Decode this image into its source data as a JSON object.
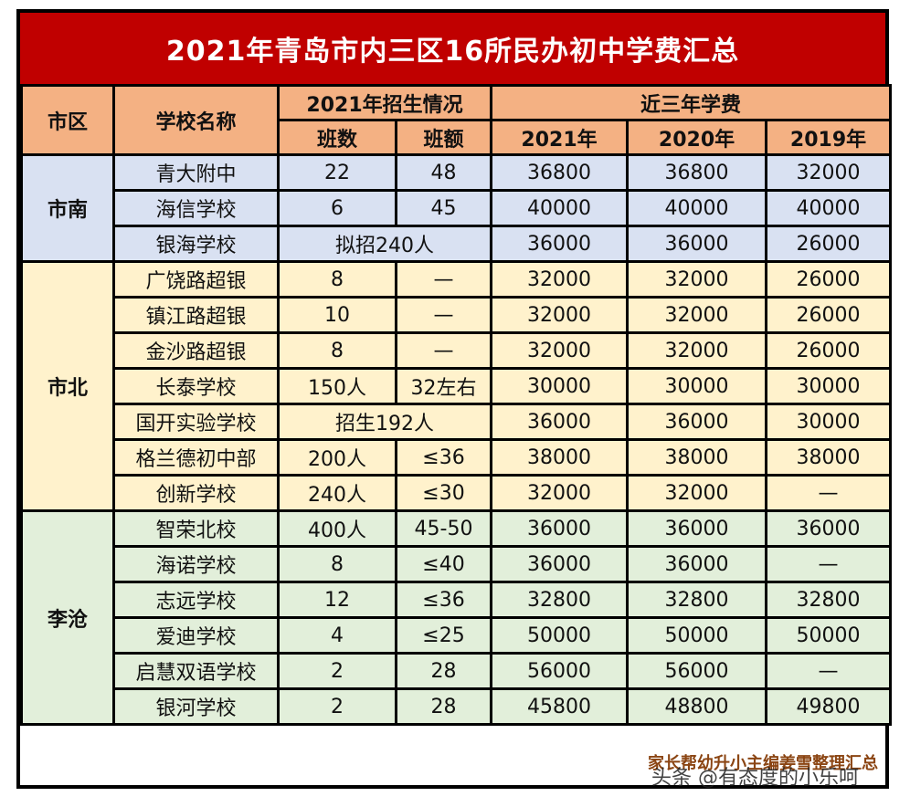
{
  "title": "2021年青岛市内三区16所民办初中学费汇总",
  "headers": {
    "district": "市区",
    "school": "学校名称",
    "enroll_group": "2021年招生情况",
    "fee_group": "近三年学费",
    "classes": "班数",
    "class_size": "班额",
    "y2021": "2021年",
    "y2020": "2020年",
    "y2019": "2019年"
  },
  "regions": [
    {
      "name": "市南",
      "rows": [
        {
          "school": "青大附中",
          "classes": "22",
          "size": "48",
          "f2021": "36800",
          "f2020": "36800",
          "f2019": "32000"
        },
        {
          "school": "海信学校",
          "classes": "6",
          "size": "45",
          "f2021": "40000",
          "f2020": "40000",
          "f2019": "40000"
        },
        {
          "school": "银海学校",
          "merged": "拟招240人",
          "f2021": "36000",
          "f2020": "36000",
          "f2019": "26000"
        }
      ]
    },
    {
      "name": "市北",
      "rows": [
        {
          "school": "广饶路超银",
          "classes": "8",
          "size": "—",
          "f2021": "32000",
          "f2020": "32000",
          "f2019": "26000"
        },
        {
          "school": "镇江路超银",
          "classes": "10",
          "size": "—",
          "f2021": "32000",
          "f2020": "32000",
          "f2019": "26000"
        },
        {
          "school": "金沙路超银",
          "classes": "8",
          "size": "—",
          "f2021": "32000",
          "f2020": "32000",
          "f2019": "26000"
        },
        {
          "school": "长泰学校",
          "classes": "150人",
          "size": "32左右",
          "f2021": "30000",
          "f2020": "30000",
          "f2019": "30000"
        },
        {
          "school": "国开实验学校",
          "merged": "招生192人",
          "f2021": "36000",
          "f2020": "36000",
          "f2019": "30000"
        },
        {
          "school": "格兰德初中部",
          "classes": "200人",
          "size": "≤36",
          "f2021": "38000",
          "f2020": "38000",
          "f2019": "38000"
        },
        {
          "school": "创新学校",
          "classes": "240人",
          "size": "≤30",
          "f2021": "32000",
          "f2020": "32000",
          "f2019": "—"
        }
      ]
    },
    {
      "name": "李沧",
      "rows": [
        {
          "school": "智荣北校",
          "classes": "400人",
          "size": "45-50",
          "f2021": "36000",
          "f2020": "36000",
          "f2019": "36000"
        },
        {
          "school": "海诺学校",
          "classes": "8",
          "size": "≤40",
          "f2021": "36000",
          "f2020": "36000",
          "f2019": "—"
        },
        {
          "school": "志远学校",
          "classes": "12",
          "size": "≤36",
          "f2021": "32800",
          "f2020": "32800",
          "f2019": "32800"
        },
        {
          "school": "爱迪学校",
          "classes": "4",
          "size": "≤25",
          "f2021": "50000",
          "f2020": "50000",
          "f2019": "50000"
        },
        {
          "school": "启慧双语学校",
          "classes": "2",
          "size": "28",
          "f2021": "56000",
          "f2020": "56000",
          "f2019": "—"
        },
        {
          "school": "银河学校",
          "classes": "2",
          "size": "28",
          "f2021": "45800",
          "f2020": "48800",
          "f2019": "49800"
        }
      ]
    }
  ],
  "footer_note": "家长帮幼升小主编姜雪整理汇总",
  "watermark": "头条 @有态度的小乐呵",
  "colors": {
    "title_bg": "#c00000",
    "header_bg": "#f4b183",
    "shinan_bg": "#d9e1f2",
    "shibei_bg": "#fff2cc",
    "licang_bg": "#e2efda"
  }
}
